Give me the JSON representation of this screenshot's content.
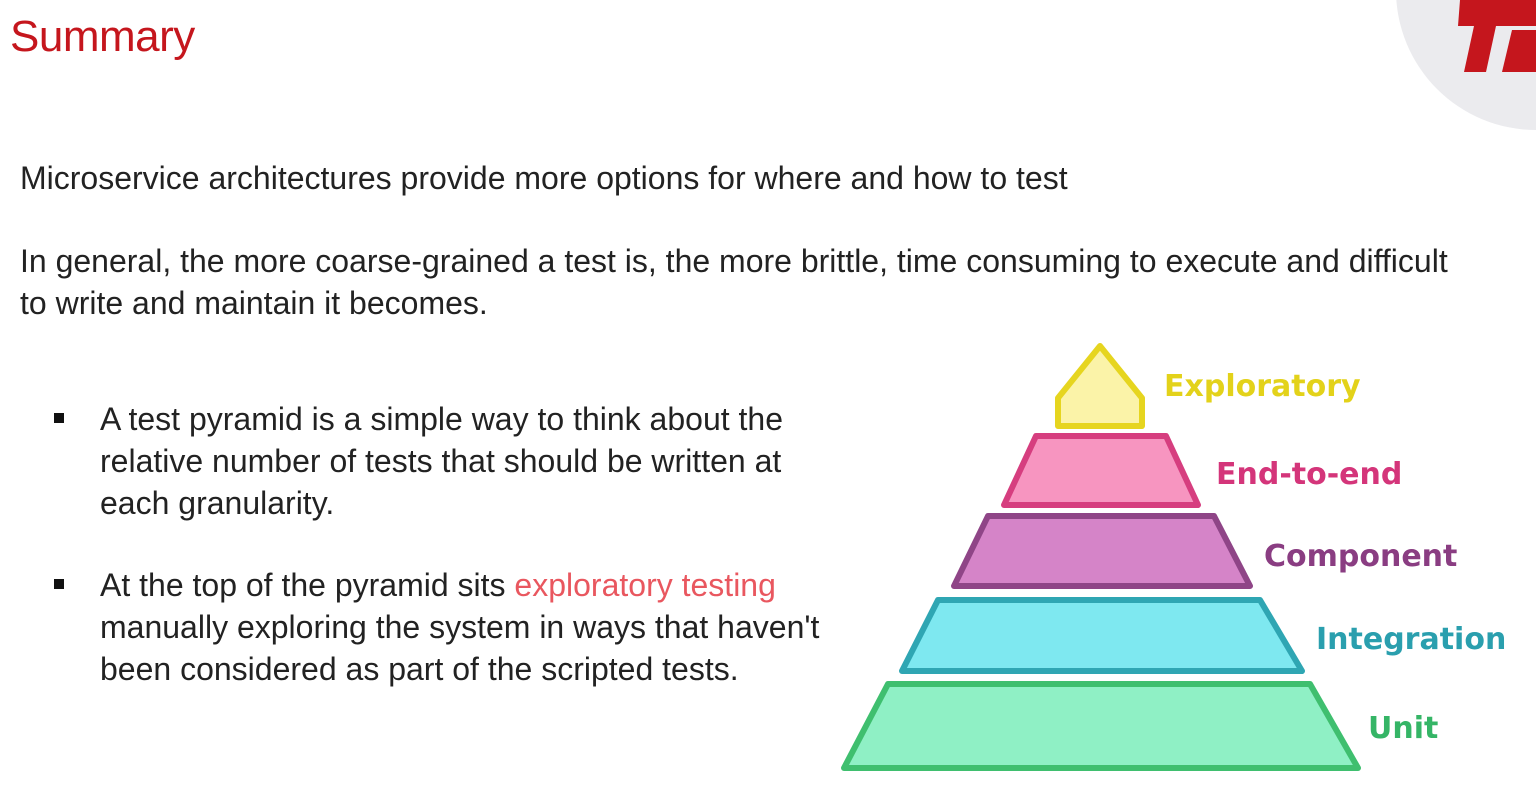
{
  "slide": {
    "title": "Summary",
    "paragraphs": [
      "Microservice architectures provide more options for where and how to test",
      "In general, the more coarse-grained a test is, the more brittle, time consuming to execute and difficult to write and maintain it becomes."
    ],
    "bullets": [
      {
        "text": "A test pyramid is a simple way to think about the relative number of tests that should be written at each granularity."
      },
      {
        "before": "At the top of the pyramid sits ",
        "highlight": "exploratory testing",
        "after": " manually exploring the system in ways that haven't been considered as part of the scripted tests."
      }
    ]
  },
  "pyramid": {
    "levels": [
      {
        "label": "Exploratory",
        "fill": "#fbf3a8",
        "stroke": "#e6d51f",
        "text_color": "#e3d21a"
      },
      {
        "label": "End-to-end",
        "fill": "#f795c0",
        "stroke": "#d63e7f",
        "text_color": "#d4357a"
      },
      {
        "label": "Component",
        "fill": "#d584c8",
        "stroke": "#8f4587",
        "text_color": "#8a3d82"
      },
      {
        "label": "Integration",
        "fill": "#7ee8f0",
        "stroke": "#2fa6b3",
        "text_color": "#2a9fae"
      },
      {
        "label": "Unit",
        "fill": "#8ff0c5",
        "stroke": "#3fbf6f",
        "text_color": "#35b566"
      }
    ]
  },
  "colors": {
    "title": "#c5161d",
    "highlight": "#e9575f",
    "logo": "#c5161d"
  }
}
